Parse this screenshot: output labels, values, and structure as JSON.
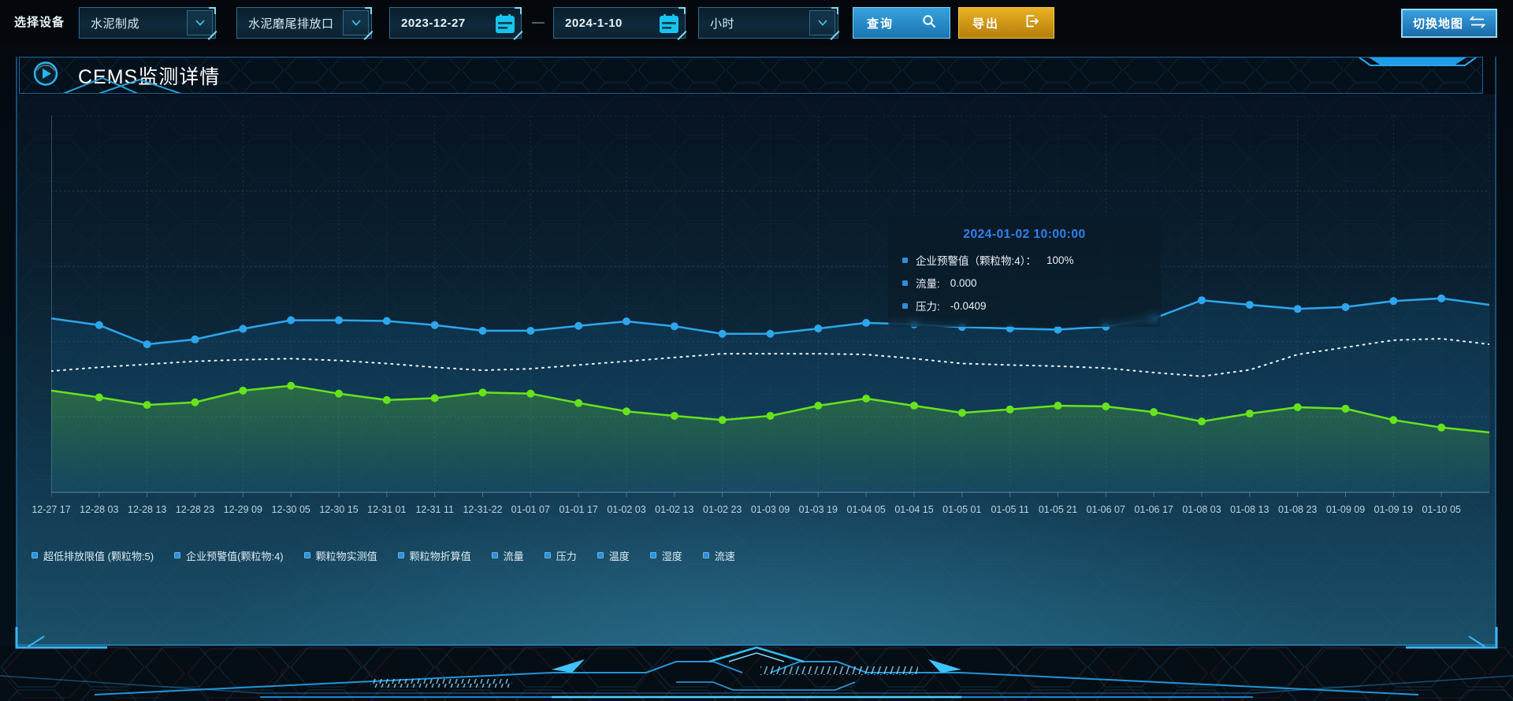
{
  "toolbar": {
    "device_label": "选择设备",
    "device_select": "水泥制成",
    "outlet_select": "水泥磨尾排放口",
    "date_start": "2023-12-27",
    "date_separator": "—",
    "date_end": "2024-1-10",
    "interval_select": "小时",
    "query_label": "查询",
    "export_label": "导出",
    "switch_map_label": "切换地图"
  },
  "panel": {
    "title": "CEMS监测详情"
  },
  "tooltip": {
    "title": "2024-01-02 10:00:00",
    "rows": [
      {
        "label": "企业预警值（颗粒物:4）：",
        "value": "100%"
      },
      {
        "label": "流量:",
        "value": "0.000"
      },
      {
        "label": "压力:",
        "value": "-0.0409"
      }
    ]
  },
  "legend": [
    "超低排放限值 (颗粒物:5)",
    "企业预警值(颗粒物:4)",
    "颗粒物实测值",
    "颗粒物折算值",
    "流量",
    "压力",
    "温度",
    "湿度",
    "流速"
  ],
  "colors": {
    "accent_cyan": "#2fb3f0",
    "series_blue": "#2ea6ec",
    "series_green": "#67e31c",
    "series_white_dotted": "#eef6f8",
    "query_button_blue": "#1e86c8",
    "export_button_gold": "#d89812",
    "switch_map_blue": "#2a8fd0",
    "tooltip_title_blue": "#2f80ee",
    "legend_marker_blue": "#2f8fd6",
    "xlabel_gray": "#bed3de"
  },
  "chart_data": {
    "type": "line",
    "title": "",
    "xlabel": "",
    "ylabel": "",
    "ylim": [
      0,
      100
    ],
    "grid": true,
    "legend_position": "bottom",
    "note": "y-axis has no visible tick labels; values estimated on 0-100 scale; 31st value extends each line to the right plot edge (unlabeled)",
    "categories": [
      "12-27 17",
      "12-28 03",
      "12-28 13",
      "12-28 23",
      "12-29 09",
      "12-30 05",
      "12-30 15",
      "12-31 01",
      "12-31 11",
      "12-31-22",
      "01-01 07",
      "01-01 17",
      "01-02 03",
      "01-02 13",
      "01-02 23",
      "01-03 09",
      "01-03 19",
      "01-04 05",
      "01-04 15",
      "01-05 01",
      "01-05 11",
      "01-05 21",
      "01-06 07",
      "01-06 17",
      "01-08 03",
      "01-08 13",
      "01-08 23",
      "01-09 09",
      "01-09 19",
      "01-10 05"
    ],
    "series": [
      {
        "id": "blue-line",
        "color": "#2ea6ec",
        "style": "solid",
        "markers": true,
        "area": "rgba(32,112,170,0.17)",
        "values": [
          46.2,
          44.4,
          39.3,
          40.6,
          43.4,
          45.7,
          45.7,
          45.5,
          44.4,
          42.9,
          42.9,
          44.2,
          45.4,
          44.1,
          42.1,
          42.1,
          43.5,
          45.0,
          44.6,
          43.9,
          43.5,
          43.2,
          44.0,
          46.2,
          51.0,
          49.8,
          48.7,
          49.2,
          50.8,
          51.5,
          49.8
        ]
      },
      {
        "id": "white-dotted-line",
        "color": "#eef6f8",
        "style": "dotted",
        "markers": false,
        "values": [
          32.2,
          33.2,
          34.0,
          34.8,
          35.2,
          35.5,
          35.0,
          34.2,
          33.2,
          32.4,
          32.8,
          33.8,
          34.8,
          35.8,
          36.8,
          36.8,
          36.8,
          36.6,
          35.5,
          34.2,
          33.8,
          33.5,
          33.0,
          31.8,
          30.8,
          32.5,
          36.6,
          38.5,
          40.4,
          40.8,
          39.3
        ]
      },
      {
        "id": "green-line",
        "color": "#67e31c",
        "style": "solid",
        "markers": true,
        "area_gradient": [
          "rgba(105,225,35,0.30)",
          "rgba(105,225,35,0.02)"
        ],
        "values": [
          27.0,
          25.2,
          23.2,
          23.9,
          27.0,
          28.3,
          26.2,
          24.5,
          25.0,
          26.5,
          26.2,
          23.7,
          21.5,
          20.3,
          19.2,
          20.3,
          23.0,
          24.9,
          23.0,
          21.1,
          22.0,
          23.0,
          22.8,
          21.3,
          18.8,
          20.9,
          22.6,
          22.2,
          19.2,
          17.2,
          15.9
        ]
      }
    ]
  }
}
